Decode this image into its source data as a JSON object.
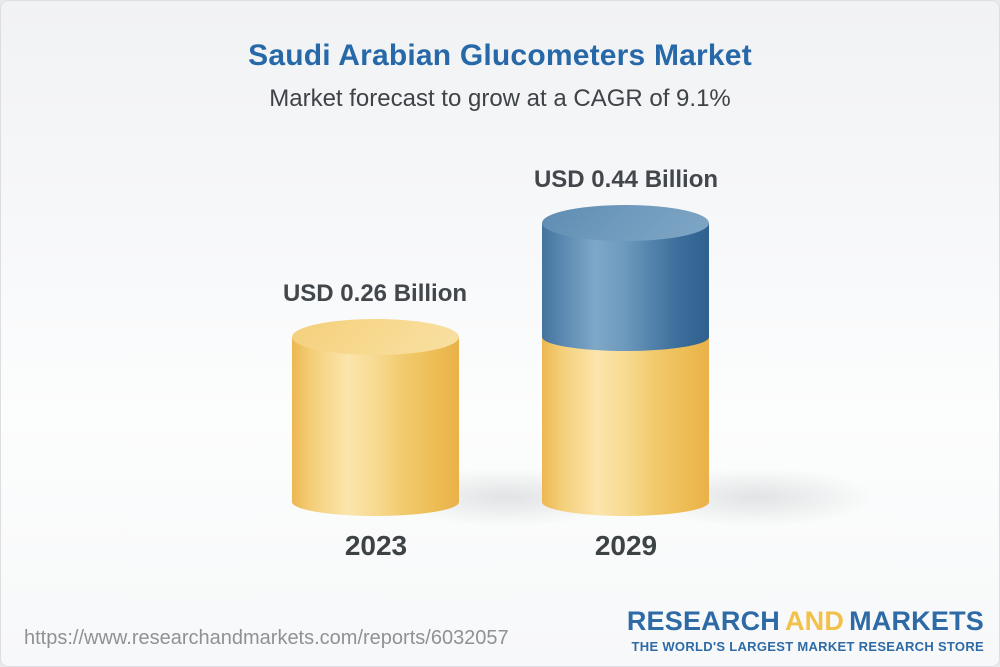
{
  "header": {
    "title": "Saudi Arabian Glucometers Market",
    "subtitle": "Market forecast to grow at a CAGR of 9.1%"
  },
  "chart_data": {
    "type": "bar",
    "variant": "3d-cylinder",
    "categories": [
      "2023",
      "2029"
    ],
    "values": [
      0.26,
      0.44
    ],
    "unit": "USD Billion",
    "value_labels": [
      "USD 0.26 Billion",
      "USD 0.44 Billion"
    ],
    "cagr_percent": 9.1,
    "title": "Saudi Arabian Glucometers Market",
    "subtitle": "Market forecast to grow at a CAGR of 9.1%",
    "legend_position": "none",
    "axes": "none",
    "grid": false,
    "bar_colors": {
      "base_segment": "#F2C660",
      "growth_segment": "#4E7EAB"
    }
  },
  "footer": {
    "report_url": "https://www.researchandmarkets.com/reports/6032057",
    "logo": {
      "word1": "RESEARCH",
      "word2": "AND",
      "word3": "MARKETS",
      "tagline": "THE WORLD'S LARGEST MARKET RESEARCH STORE",
      "blue": "#2E6BA6",
      "amber": "#F2C14B"
    }
  },
  "colors": {
    "title_blue": "#2769A8",
    "text_dark": "#42474C",
    "url_gray": "#8E9295",
    "background_top": "#F1F2F4",
    "background_bottom": "#F7F8F9"
  }
}
